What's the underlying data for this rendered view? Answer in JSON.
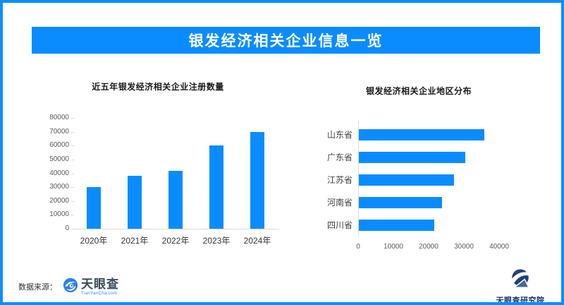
{
  "header": {
    "title": "银发经济相关企业信息一览"
  },
  "chart_data": [
    {
      "type": "bar",
      "orientation": "vertical",
      "title": "近五年银发经济相关企业注册数量",
      "categories": [
        "2020年",
        "2021年",
        "2022年",
        "2023年",
        "2024年"
      ],
      "values": [
        30000,
        38000,
        42000,
        60000,
        70000
      ],
      "xlabel": "",
      "ylabel": "",
      "ylim": [
        0,
        80000
      ],
      "yticks": [
        0,
        10000,
        20000,
        30000,
        40000,
        50000,
        60000,
        70000,
        80000
      ],
      "grid": false,
      "legend": "none",
      "bar_color": "#0a8cff"
    },
    {
      "type": "bar",
      "orientation": "horizontal",
      "title": "银发经济相关企业地区分布",
      "categories": [
        "山东省",
        "广东省",
        "江苏省",
        "河南省",
        "四川省"
      ],
      "values": [
        35600,
        30200,
        27000,
        23500,
        21300
      ],
      "xlabel": "",
      "ylabel": "",
      "xlim": [
        0,
        48000
      ],
      "xticks": [
        0,
        10000,
        20000,
        30000,
        40000
      ],
      "grid": false,
      "legend": "none",
      "bar_color": "#0a8cff"
    }
  ],
  "footer": {
    "source_label": "数据来源：",
    "tianyancha_name": "天眼查",
    "tianyancha_domain": "TianYanCha.com",
    "institute_name": "天眼查研究院"
  },
  "icons": {
    "tianyancha_eye": "blue circular eye-swirl logo",
    "institute_badge": "navy circle with swoosh and triangle"
  },
  "colors": {
    "accent_blue": "#0a8cff",
    "border_blue": "#0c8dff",
    "axis_line": "#dcdcdc",
    "axis_text": "#595959",
    "chart_title_text": "#1a1a1a",
    "logo_eye_blue": "#2b80e8",
    "logo_navy": "#20417d"
  }
}
